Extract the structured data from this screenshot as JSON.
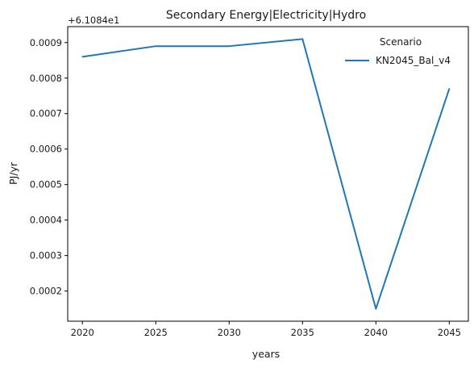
{
  "chart_data": {
    "type": "line",
    "title": "Secondary Energy|Electricity|Hydro",
    "xlabel": "years",
    "ylabel": "PJ/yr",
    "y_offset_label": "+6.1084e1",
    "x": [
      2020,
      2025,
      2030,
      2035,
      2040,
      2045
    ],
    "series": [
      {
        "name": "KN2045_Bal_v4",
        "color": "#1f77b4",
        "values": [
          0.00086,
          0.00089,
          0.00089,
          0.00091,
          0.00015,
          0.00077
        ]
      }
    ],
    "x_ticks": [
      "2020",
      "2025",
      "2030",
      "2035",
      "2040",
      "2045"
    ],
    "y_ticks": [
      "0.0002",
      "0.0003",
      "0.0004",
      "0.0005",
      "0.0006",
      "0.0007",
      "0.0008",
      "0.0009"
    ],
    "xlim": [
      2019,
      2046.3
    ],
    "ylim": [
      0.000115,
      0.000945
    ],
    "legend": {
      "title": "Scenario",
      "placement": "top-right"
    },
    "grid": false
  }
}
